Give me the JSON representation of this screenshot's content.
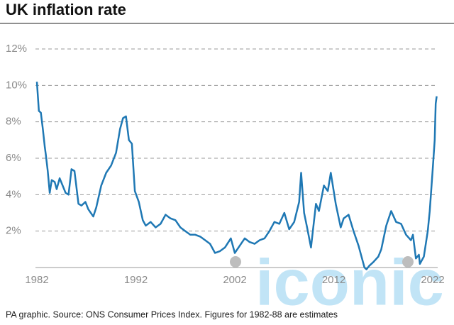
{
  "chart_data": {
    "type": "line",
    "title": "UK inflation rate",
    "footnote": "PA graphic. Source: ONS Consumer Prices Index. Figures for 1982-88 are estimates",
    "watermark": "iconic",
    "xlim": [
      1982,
      2022.5
    ],
    "xticks": [
      1982,
      1992,
      2002,
      2012,
      2022
    ],
    "ylim": [
      0,
      12
    ],
    "yticks": [
      {
        "value": 2,
        "label": "2%"
      },
      {
        "value": 4,
        "label": "4%"
      },
      {
        "value": 6,
        "label": "6%"
      },
      {
        "value": 8,
        "label": "8%"
      },
      {
        "value": 10,
        "label": "10%"
      },
      {
        "value": 12,
        "label": "12%"
      }
    ],
    "grid": true,
    "series": [
      {
        "color": "#1f78b4",
        "x": [
          1982.0,
          1982.2,
          1982.4,
          1982.6,
          1982.8,
          1982.9,
          1983.1,
          1983.3,
          1983.5,
          1983.8,
          1984.0,
          1984.3,
          1984.6,
          1984.9,
          1985.2,
          1985.5,
          1985.8,
          1986.2,
          1986.5,
          1986.9,
          1987.2,
          1987.7,
          1988.0,
          1988.5,
          1989.0,
          1989.5,
          1990.0,
          1990.4,
          1990.7,
          1991.0,
          1991.3,
          1991.6,
          1991.9,
          1992.3,
          1992.7,
          1993.0,
          1993.5,
          1994.0,
          1994.5,
          1995.0,
          1995.5,
          1996.0,
          1996.5,
          1997.0,
          1997.5,
          1998.0,
          1998.5,
          1999.0,
          1999.5,
          2000.0,
          2000.5,
          2001.0,
          2001.6,
          2002.0,
          2002.5,
          2003.0,
          2003.5,
          2004.0,
          2004.5,
          2005.0,
          2005.5,
          2006.0,
          2006.5,
          2007.0,
          2007.5,
          2008.0,
          2008.5,
          2008.7,
          2009.0,
          2009.3,
          2009.7,
          2010.2,
          2010.5,
          2011.0,
          2011.4,
          2011.7,
          2012.2,
          2012.7,
          2013.0,
          2013.5,
          2014.0,
          2014.5,
          2015.1,
          2015.3,
          2015.6,
          2016.0,
          2016.5,
          2016.8,
          2017.3,
          2017.8,
          2018.3,
          2018.8,
          2019.3,
          2019.8,
          2020.0,
          2020.3,
          2020.6,
          2020.7,
          2021.1,
          2021.5,
          2021.7,
          2022.0,
          2022.1,
          2022.2,
          2022.3,
          2022.4
        ],
        "values": [
          10.2,
          8.6,
          8.5,
          7.6,
          6.6,
          6.2,
          5.3,
          4.1,
          4.8,
          4.7,
          4.3,
          4.9,
          4.5,
          4.1,
          4.0,
          5.4,
          5.3,
          3.5,
          3.4,
          3.6,
          3.2,
          2.8,
          3.3,
          4.5,
          5.2,
          5.6,
          6.3,
          7.6,
          8.2,
          8.3,
          7.0,
          6.8,
          4.2,
          3.6,
          2.6,
          2.3,
          2.5,
          2.2,
          2.4,
          2.9,
          2.7,
          2.6,
          2.2,
          2.0,
          1.8,
          1.8,
          1.7,
          1.5,
          1.3,
          0.8,
          0.9,
          1.1,
          1.6,
          0.8,
          1.2,
          1.6,
          1.4,
          1.3,
          1.5,
          1.6,
          2.0,
          2.5,
          2.4,
          3.0,
          2.1,
          2.5,
          3.6,
          5.2,
          3.0,
          2.2,
          1.1,
          3.5,
          3.1,
          4.5,
          4.2,
          5.2,
          3.5,
          2.2,
          2.7,
          2.9,
          2.0,
          1.2,
          0.0,
          -0.1,
          0.1,
          0.3,
          0.6,
          1.0,
          2.3,
          3.1,
          2.5,
          2.4,
          1.8,
          1.5,
          1.8,
          0.5,
          0.7,
          0.2,
          0.6,
          2.0,
          3.1,
          5.4,
          6.2,
          7.0,
          9.0,
          9.4
        ]
      }
    ]
  }
}
